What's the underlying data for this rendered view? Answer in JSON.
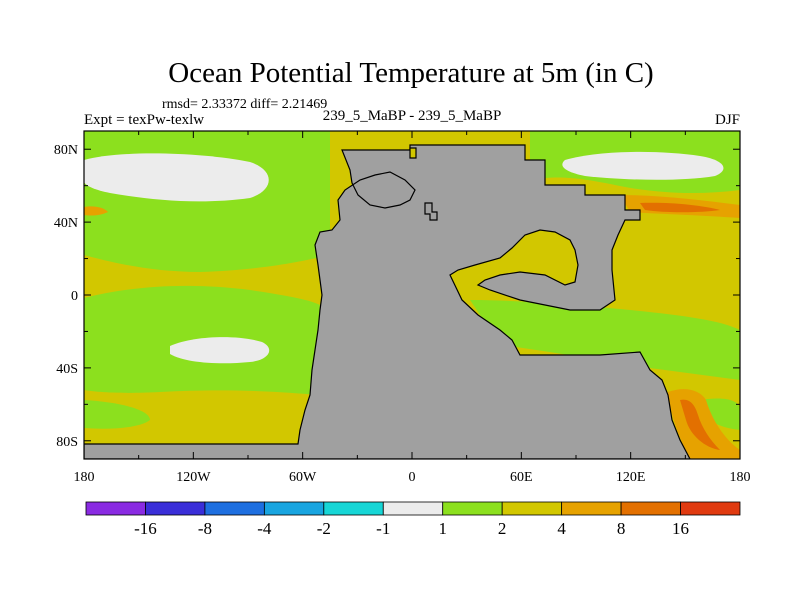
{
  "chart_data": {
    "type": "heatmap",
    "title": "Ocean Potential Temperature at 5m (in C)",
    "subtitle_left": "Expt = texPw-texlw",
    "stats": "rmsd= 2.33372  diff= 2.21469",
    "subtitle_center": "239_5_MaBP - 239_5_MaBP",
    "subtitle_right": "DJF",
    "x_ticks": [
      "180",
      "120W",
      "60W",
      "0",
      "60E",
      "120E",
      "180"
    ],
    "y_ticks": [
      "80N",
      "40N",
      "0",
      "40S",
      "80S"
    ],
    "x_tick_values": [
      -180,
      -120,
      -60,
      0,
      60,
      120,
      180
    ],
    "y_tick_values": [
      80,
      40,
      0,
      -40,
      -80
    ],
    "xlim": [
      -180,
      180
    ],
    "ylim": [
      -90,
      90
    ],
    "colorbar": {
      "labels": [
        "-16",
        "-8",
        "-4",
        "-2",
        "-1",
        "1",
        "2",
        "4",
        "8",
        "16"
      ],
      "colors": [
        "#8a2be2",
        "#3a2ed8",
        "#1e6fe0",
        "#19a5e0",
        "#17d6d6",
        "#ececec",
        "#8ce01e",
        "#d2c700",
        "#e6a200",
        "#e37000",
        "#e03a10"
      ]
    },
    "land_color": "#a0a0a0",
    "regions": [
      {
        "name": "background",
        "value_range": "2 to 4",
        "color": "#d2c700"
      },
      {
        "name": "north-pacific-warm-pool",
        "value_range": "1 to 2",
        "color": "#8ce01e"
      },
      {
        "name": "north-pacific-cool-patch",
        "value_range": "-1 to 1",
        "color": "#ececec"
      },
      {
        "name": "south-pacific-cool-patch",
        "value_range": "-1 to 1",
        "color": "#ececec"
      },
      {
        "name": "tethys-cool-patch",
        "value_range": "-1 to 1",
        "color": "#ececec"
      },
      {
        "name": "eastern-tethys-warm-band",
        "value_range": "8 to 16",
        "color": "#e37000"
      }
    ]
  }
}
